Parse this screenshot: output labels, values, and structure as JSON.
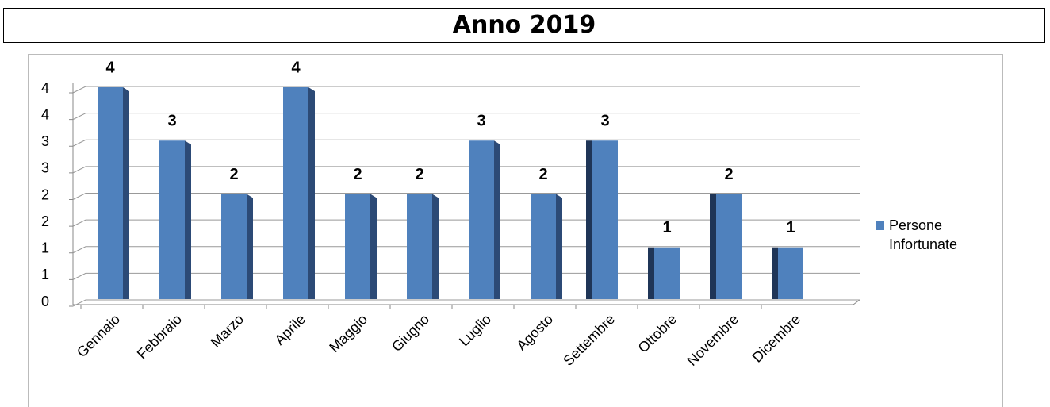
{
  "chart_data": {
    "type": "bar",
    "title": "Anno 2019",
    "categories": [
      "Gennaio",
      "Febbraio",
      "Marzo",
      "Aprile",
      "Maggio",
      "Giugno",
      "Luglio",
      "Agosto",
      "Settembre",
      "Ottobre",
      "Novembre",
      "Dicembre"
    ],
    "series": [
      {
        "name": "Persone Infortunate",
        "color": "#4f81bd",
        "values": [
          4,
          3,
          2,
          4,
          2,
          2,
          3,
          2,
          3,
          1,
          2,
          1
        ]
      }
    ],
    "ylim": [
      0,
      4
    ],
    "yticks": [
      0,
      {
        "value": 0.5,
        "label": "1"
      },
      1,
      {
        "value": 1.5,
        "label": "2"
      },
      2,
      {
        "value": 2.5,
        "label": "3"
      },
      3,
      {
        "value": 3.5,
        "label": "4"
      },
      4
    ],
    "grid": true,
    "legend": "right"
  }
}
